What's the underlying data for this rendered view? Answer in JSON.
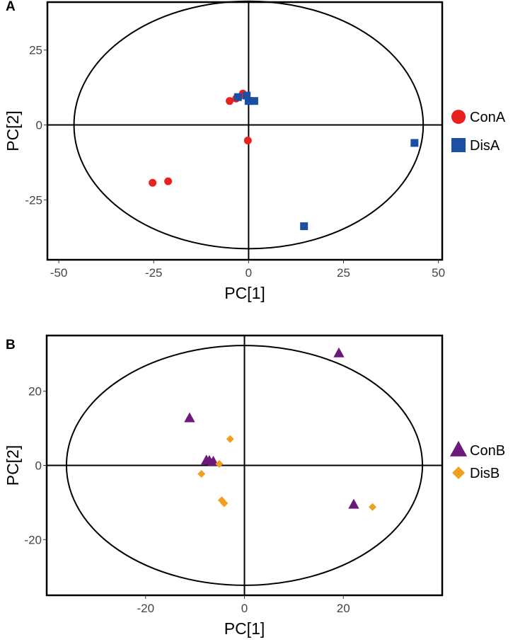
{
  "chart_data": [
    {
      "type": "scatter",
      "panel_label": "A",
      "xlabel": "PC[1]",
      "ylabel": "PC[2]",
      "xlim": [
        -53,
        51
      ],
      "ylim": [
        -45,
        41
      ],
      "xticks": [
        -50,
        -25,
        0,
        25,
        50
      ],
      "yticks": [
        -25,
        0,
        25
      ],
      "xtick_labels": [
        "-50",
        "-25",
        "0",
        "25",
        "50"
      ],
      "ytick_labels": [
        "-25",
        "0",
        "25"
      ],
      "ellipse": {
        "rx": 46,
        "ry": 41.3
      },
      "legend_position": "right",
      "series": [
        {
          "name": "ConA",
          "marker": "circle",
          "color": "#e8231f",
          "points": [
            [
              -5,
              8
            ],
            [
              -3.3,
              8.8
            ],
            [
              -1.5,
              10.5
            ],
            [
              -1.1,
              9.8
            ],
            [
              -0.2,
              -5.2
            ],
            [
              -25.3,
              -19.3
            ],
            [
              -21.2,
              -18.8
            ]
          ]
        },
        {
          "name": "DisA",
          "marker": "square",
          "color": "#1b4fa3",
          "points": [
            [
              -2.8,
              9.3
            ],
            [
              -0.5,
              9.8
            ],
            [
              0,
              8
            ],
            [
              1.5,
              8
            ],
            [
              43.7,
              -6
            ],
            [
              14.6,
              -33.8
            ]
          ]
        }
      ]
    },
    {
      "type": "scatter",
      "panel_label": "B",
      "xlabel": "PC[1]",
      "ylabel": "PC[2]",
      "xlim": [
        -40,
        40
      ],
      "ylim": [
        -35,
        35
      ],
      "xticks": [
        -20,
        0,
        20
      ],
      "yticks": [
        -20,
        0,
        20
      ],
      "xtick_labels": [
        "-20",
        "0",
        "20"
      ],
      "ytick_labels": [
        "-20",
        "0",
        "20"
      ],
      "ellipse": {
        "rx": 36,
        "ry": 32.3
      },
      "legend_position": "right",
      "series": [
        {
          "name": "ConB",
          "marker": "triangle",
          "color": "#6b1a7a",
          "points": [
            [
              19.1,
              30.2
            ],
            [
              -11.1,
              12.7
            ],
            [
              -7.7,
              1.3
            ],
            [
              -7.1,
              1.2
            ],
            [
              -6.3,
              1.0
            ],
            [
              22.1,
              -10.6
            ]
          ]
        },
        {
          "name": "DisB",
          "marker": "diamond",
          "color": "#f0a020",
          "points": [
            [
              -2.9,
              7.1
            ],
            [
              -5.1,
              0.4
            ],
            [
              -8.7,
              -2.3
            ],
            [
              -4.6,
              -9.4
            ],
            [
              -4.1,
              -10.2
            ],
            [
              25.9,
              -11.2
            ]
          ]
        }
      ]
    }
  ]
}
